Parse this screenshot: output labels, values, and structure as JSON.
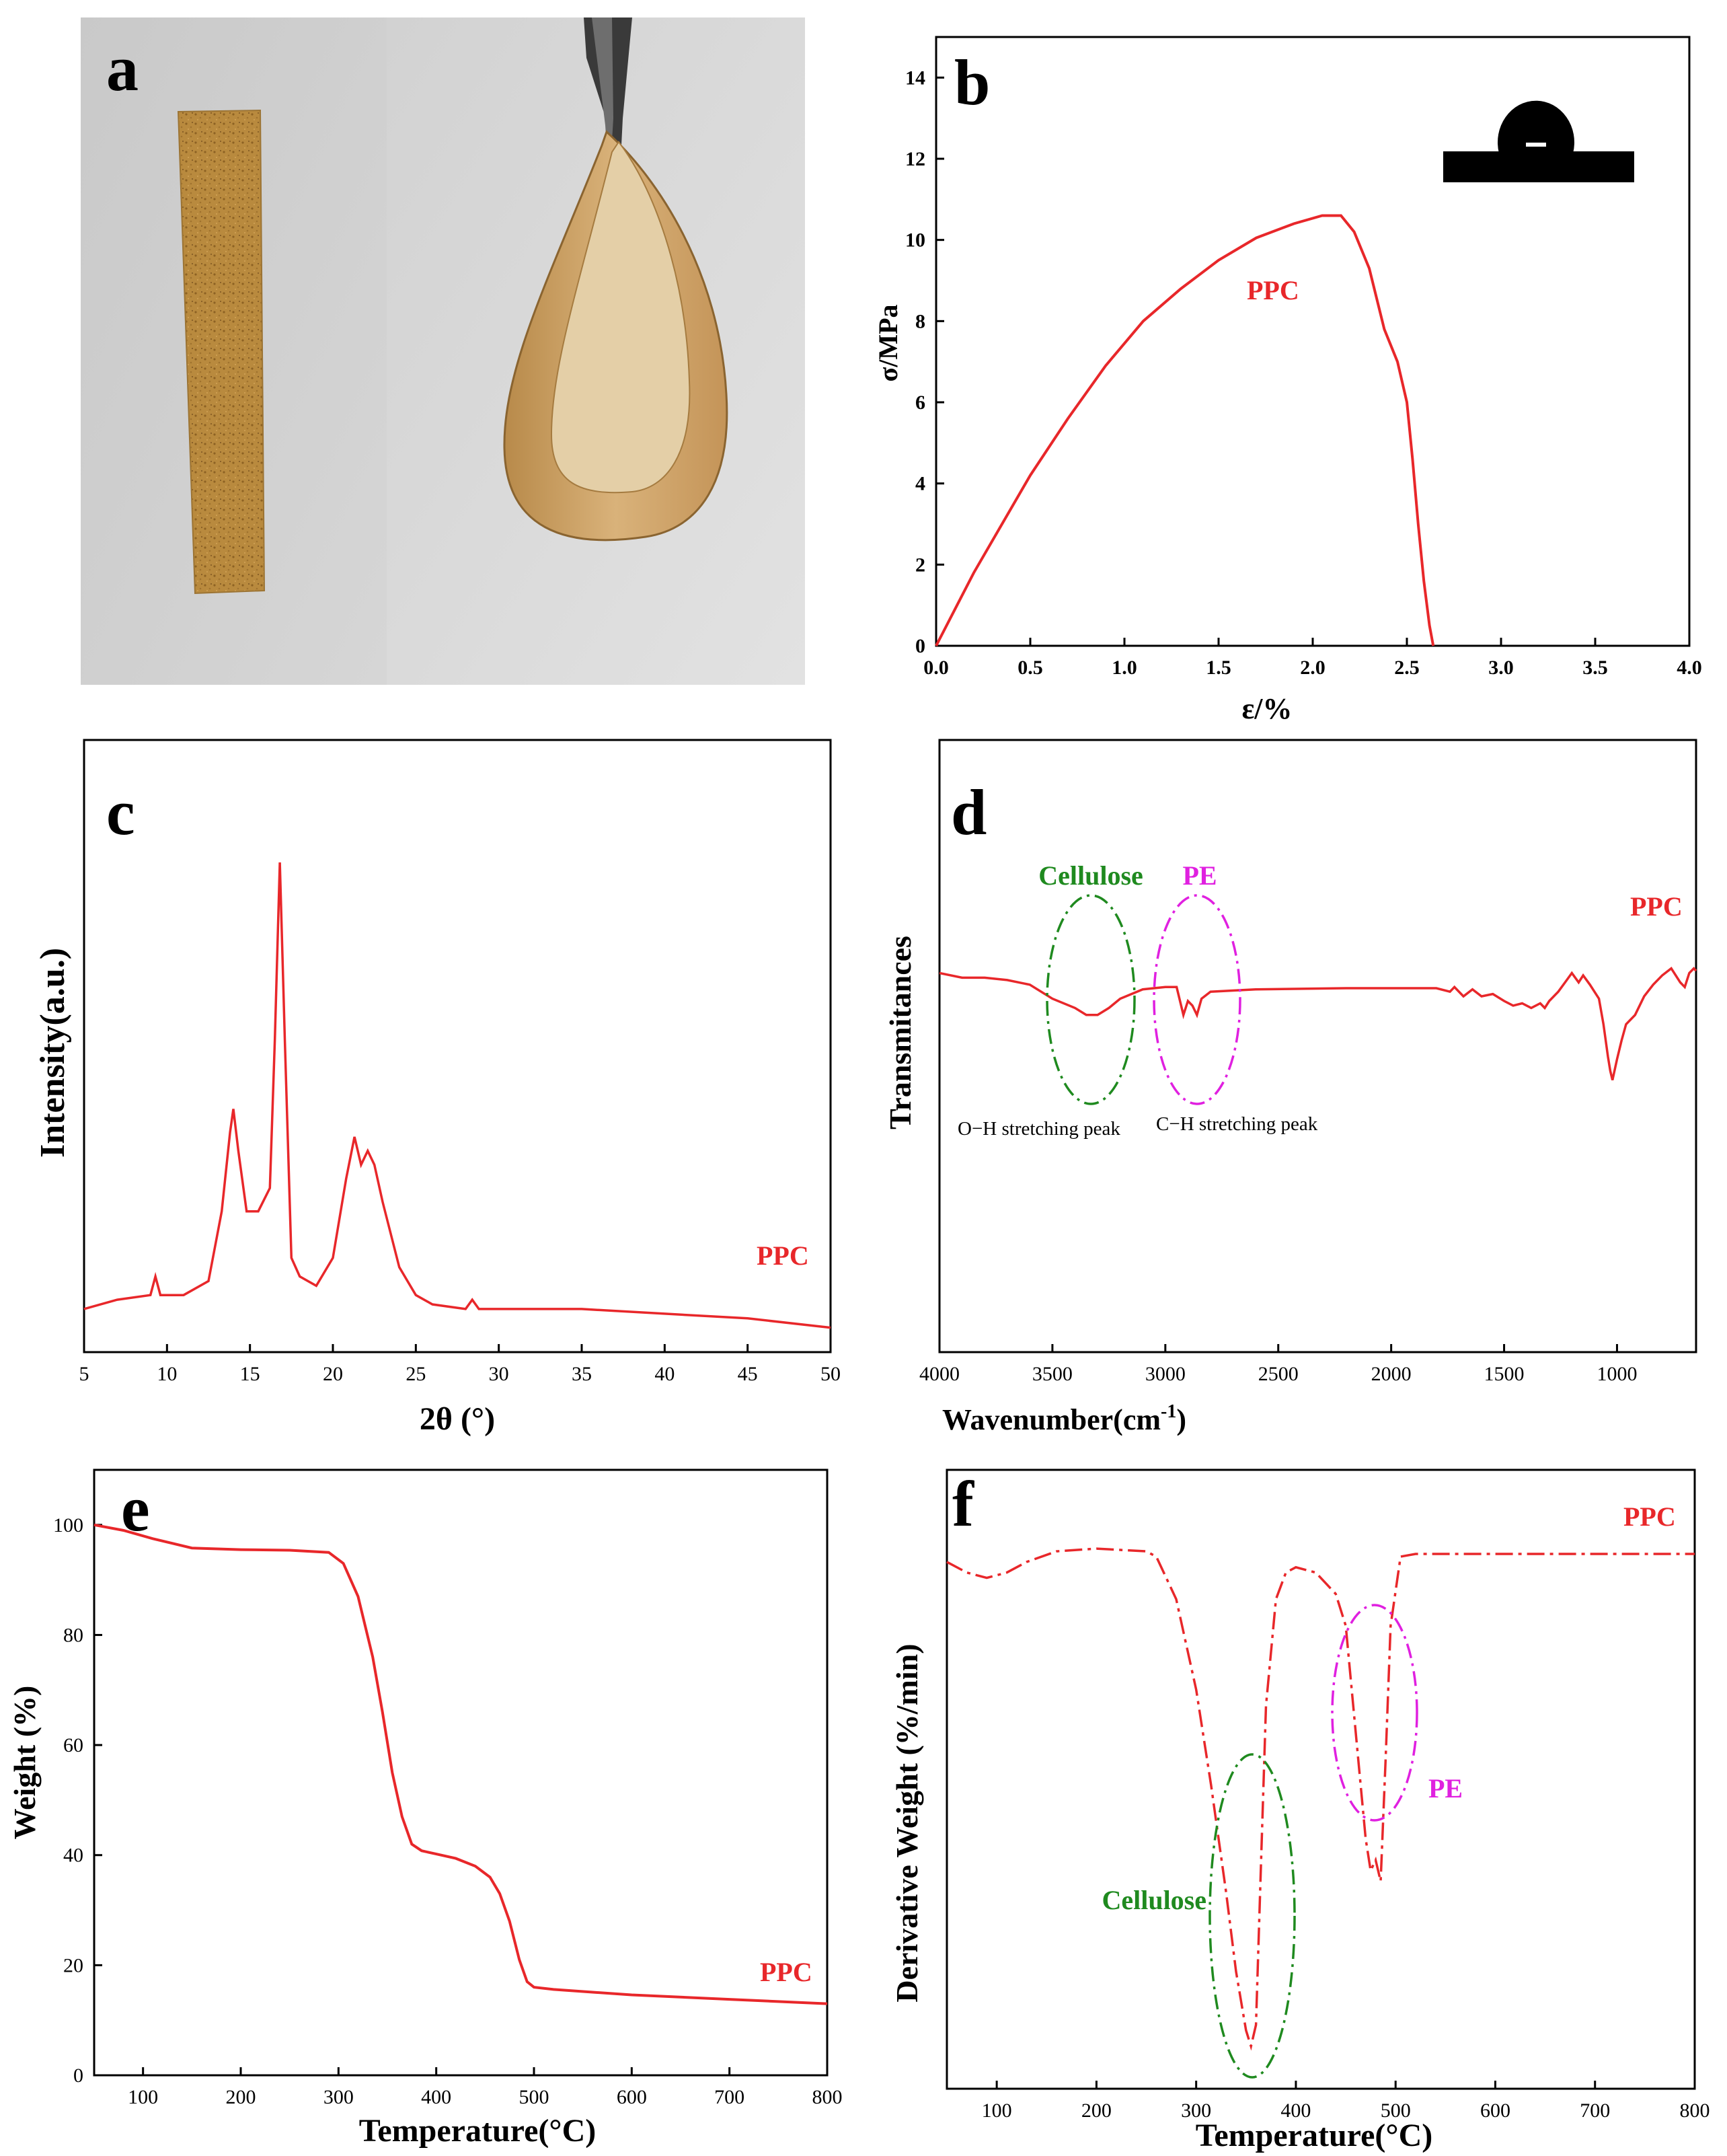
{
  "panels": {
    "a": {
      "letter": "a"
    },
    "b": {
      "letter": "b"
    },
    "c": {
      "letter": "c"
    },
    "d": {
      "letter": "d"
    },
    "e": {
      "letter": "e"
    },
    "f": {
      "letter": "f"
    }
  },
  "colors": {
    "curve": "#e8272a",
    "cellulose": "#1f8a1f",
    "pe": "#e020e0",
    "axis": "#000000"
  },
  "chart_data": [
    {
      "id": "b",
      "type": "line",
      "xlabel": "ε/%",
      "ylabel": "σ/MPa",
      "xlim": [
        0,
        4.0
      ],
      "ylim": [
        0,
        15
      ],
      "xticks": [
        "0.0",
        "0.5",
        "1.0",
        "1.5",
        "2.0",
        "2.5",
        "3.0",
        "3.5",
        "4.0"
      ],
      "xtick_values": [
        0,
        0.5,
        1,
        1.5,
        2,
        2.5,
        3,
        3.5,
        4
      ],
      "yticks": [
        "0",
        "2",
        "4",
        "6",
        "8",
        "10",
        "12",
        "14"
      ],
      "ytick_values": [
        0,
        2,
        4,
        6,
        8,
        10,
        12,
        14
      ],
      "series": [
        {
          "name": "PPC",
          "x": [
            0,
            0.1,
            0.2,
            0.3,
            0.5,
            0.7,
            0.9,
            1.1,
            1.3,
            1.5,
            1.7,
            1.9,
            2.05,
            2.15,
            2.22,
            2.3,
            2.38,
            2.45,
            2.5,
            2.53,
            2.56,
            2.59,
            2.62,
            2.64
          ],
          "y": [
            0,
            0.9,
            1.8,
            2.6,
            4.2,
            5.6,
            6.9,
            8.0,
            8.8,
            9.5,
            10.05,
            10.4,
            10.6,
            10.6,
            10.2,
            9.3,
            7.8,
            7.0,
            6.0,
            4.6,
            3.0,
            1.6,
            0.5,
            0
          ]
        }
      ],
      "labels": {
        "series": "PPC"
      }
    },
    {
      "id": "c",
      "type": "line",
      "xlabel": "2θ (°)",
      "ylabel": "Intensity(a.u.)",
      "xlim": [
        5,
        50
      ],
      "xticks": [
        "5",
        "10",
        "15",
        "20",
        "25",
        "30",
        "35",
        "40",
        "45",
        "50"
      ],
      "xtick_values": [
        5,
        10,
        15,
        20,
        25,
        30,
        35,
        40,
        45,
        50
      ],
      "series": [
        {
          "name": "PPC",
          "x": [
            5,
            7,
            9,
            9.3,
            9.6,
            11,
            12.5,
            13.3,
            13.8,
            14.0,
            14.3,
            14.8,
            15.5,
            16.2,
            16.5,
            16.8,
            17.1,
            17.5,
            18.0,
            19.0,
            20.0,
            20.8,
            21.3,
            21.7,
            22.1,
            22.5,
            23.0,
            24.0,
            25.0,
            26.0,
            28.0,
            28.4,
            28.8,
            30,
            35,
            40,
            45,
            50
          ],
          "y": [
            0.04,
            0.06,
            0.07,
            0.11,
            0.07,
            0.07,
            0.1,
            0.25,
            0.42,
            0.47,
            0.38,
            0.25,
            0.25,
            0.3,
            0.62,
            1.0,
            0.62,
            0.15,
            0.11,
            0.09,
            0.15,
            0.32,
            0.41,
            0.35,
            0.38,
            0.35,
            0.27,
            0.13,
            0.07,
            0.05,
            0.04,
            0.06,
            0.04,
            0.04,
            0.04,
            0.03,
            0.02,
            0.0
          ]
        }
      ],
      "labels": {
        "series": "PPC"
      }
    },
    {
      "id": "d",
      "type": "line",
      "xlabel": "Wavenumber(cm",
      "xlabel_sup": "-1",
      "xlabel_end": ")",
      "ylabel": "Transmitances",
      "xlim": [
        4000,
        650
      ],
      "xticks": [
        "4000",
        "3500",
        "3000",
        "2500",
        "2000",
        "1500",
        "1000"
      ],
      "xtick_values": [
        4000,
        3500,
        3000,
        2500,
        2000,
        1500,
        1000
      ],
      "series": [
        {
          "name": "PPC",
          "x": [
            4000,
            3900,
            3800,
            3700,
            3600,
            3500,
            3400,
            3350,
            3300,
            3250,
            3200,
            3100,
            3000,
            2950,
            2920,
            2900,
            2880,
            2860,
            2840,
            2800,
            2600,
            2200,
            1800,
            1740,
            1720,
            1680,
            1640,
            1600,
            1550,
            1500,
            1460,
            1420,
            1380,
            1340,
            1320,
            1300,
            1260,
            1230,
            1200,
            1170,
            1150,
            1120,
            1080,
            1060,
            1040,
            1030,
            1020,
            1000,
            980,
            960,
            920,
            880,
            840,
            800,
            760,
            720,
            700,
            680,
            660,
            650
          ],
          "y": [
            0.84,
            0.82,
            0.82,
            0.81,
            0.79,
            0.73,
            0.69,
            0.66,
            0.66,
            0.69,
            0.73,
            0.77,
            0.78,
            0.78,
            0.66,
            0.72,
            0.7,
            0.66,
            0.73,
            0.76,
            0.77,
            0.775,
            0.775,
            0.76,
            0.78,
            0.74,
            0.77,
            0.74,
            0.75,
            0.72,
            0.7,
            0.71,
            0.69,
            0.71,
            0.69,
            0.72,
            0.76,
            0.8,
            0.84,
            0.8,
            0.83,
            0.79,
            0.73,
            0.62,
            0.48,
            0.42,
            0.38,
            0.47,
            0.55,
            0.62,
            0.66,
            0.74,
            0.79,
            0.83,
            0.86,
            0.8,
            0.78,
            0.84,
            0.86,
            0.85
          ]
        }
      ],
      "labels": {
        "series": "PPC",
        "cellulose": "Cellulose",
        "pe": "PE",
        "oh": "O−H stretching peak",
        "ch": "C−H stretching peak"
      }
    },
    {
      "id": "e",
      "type": "line",
      "xlabel": "Temperature(°C)",
      "ylabel": "Weight (%)",
      "xlim": [
        50,
        800
      ],
      "ylim": [
        0,
        110
      ],
      "xticks": [
        "100",
        "200",
        "300",
        "400",
        "500",
        "600",
        "700",
        "800"
      ],
      "xtick_values": [
        100,
        200,
        300,
        400,
        500,
        600,
        700,
        800
      ],
      "yticks": [
        "0",
        "20",
        "40",
        "60",
        "80",
        "100"
      ],
      "ytick_values": [
        0,
        20,
        40,
        60,
        80,
        100
      ],
      "series": [
        {
          "name": "PPC",
          "x": [
            50,
            80,
            110,
            150,
            200,
            250,
            290,
            305,
            320,
            335,
            345,
            355,
            365,
            375,
            385,
            400,
            420,
            440,
            455,
            465,
            475,
            485,
            493,
            500,
            520,
            560,
            600,
            700,
            800
          ],
          "y": [
            100,
            99,
            97.5,
            95.8,
            95.5,
            95.4,
            95.0,
            93,
            87,
            76,
            66,
            55,
            47,
            42,
            40.8,
            40.2,
            39.4,
            38,
            36,
            33,
            28,
            21,
            17,
            16,
            15.6,
            15.1,
            14.6,
            13.8,
            13.0
          ]
        }
      ],
      "labels": {
        "series": "PPC"
      }
    },
    {
      "id": "f",
      "type": "line",
      "xlabel": "Temperature(°C)",
      "ylabel": "Derivative Weight (%/min)",
      "xlim": [
        50,
        800
      ],
      "xticks": [
        "100",
        "200",
        "300",
        "400",
        "500",
        "600",
        "700",
        "800"
      ],
      "xtick_values": [
        100,
        200,
        300,
        400,
        500,
        600,
        700,
        800
      ],
      "series": [
        {
          "name": "PPC",
          "x": [
            50,
            70,
            90,
            110,
            130,
            160,
            200,
            250,
            260,
            280,
            300,
            315,
            330,
            340,
            350,
            355,
            360,
            365,
            370,
            380,
            390,
            400,
            420,
            440,
            450,
            460,
            470,
            475,
            480,
            485,
            490,
            495,
            505,
            520,
            600,
            700,
            800
          ],
          "y": [
            0.92,
            0.9,
            0.89,
            0.9,
            0.92,
            0.94,
            0.945,
            0.94,
            0.93,
            0.85,
            0.68,
            0.5,
            0.3,
            0.15,
            0.04,
            0.01,
            0.05,
            0.35,
            0.65,
            0.85,
            0.9,
            0.91,
            0.9,
            0.86,
            0.8,
            0.6,
            0.4,
            0.34,
            0.36,
            0.32,
            0.55,
            0.8,
            0.93,
            0.935,
            0.935,
            0.935,
            0.935
          ]
        }
      ],
      "labels": {
        "series": "PPC",
        "cellulose": "Cellulose",
        "pe": "PE"
      }
    }
  ]
}
